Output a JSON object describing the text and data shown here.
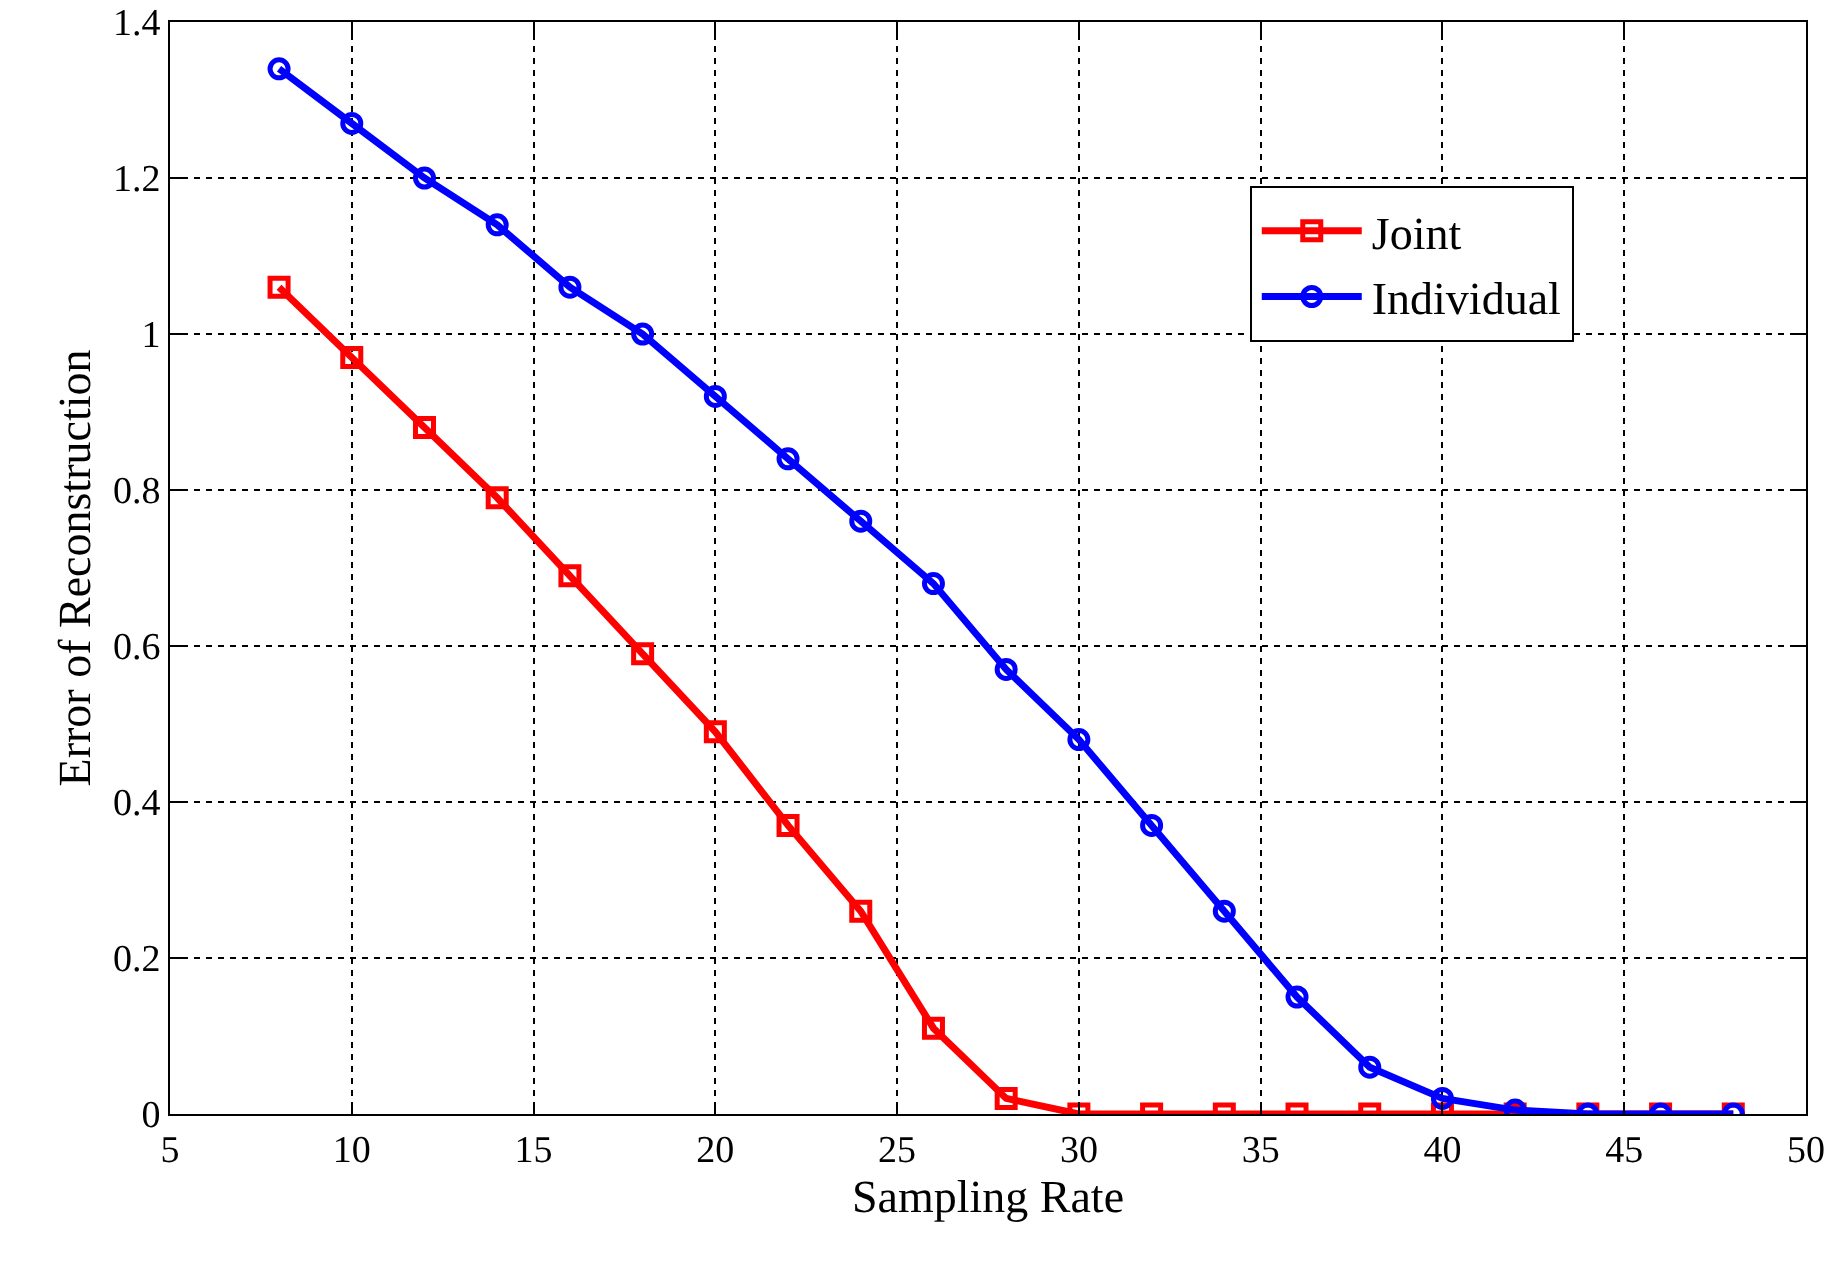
{
  "chart_data": {
    "type": "line",
    "xlabel": "Sampling Rate",
    "ylabel": "Error of Reconstruction",
    "x": [
      8,
      10,
      12,
      14,
      16,
      18,
      20,
      22,
      24,
      26,
      28,
      30,
      32,
      34,
      36,
      38,
      40,
      42,
      44,
      46,
      48
    ],
    "series": [
      {
        "name": "Joint",
        "color": "#ff0000",
        "marker": "square",
        "values": [
          1.06,
          0.97,
          0.88,
          0.79,
          0.69,
          0.59,
          0.49,
          0.37,
          0.26,
          0.11,
          0.02,
          0,
          0,
          0,
          0,
          0,
          0,
          0,
          0,
          0,
          0
        ]
      },
      {
        "name": "Individual",
        "color": "#0000ff",
        "marker": "circle",
        "values": [
          1.34,
          1.27,
          1.2,
          1.14,
          1.06,
          1.0,
          0.92,
          0.84,
          0.76,
          0.68,
          0.57,
          0.48,
          0.37,
          0.26,
          0.15,
          0.06,
          0.02,
          0.005,
          0,
          0,
          0
        ]
      }
    ],
    "xlim": [
      5,
      50
    ],
    "xticks": [
      5,
      10,
      15,
      20,
      25,
      30,
      35,
      40,
      45,
      50
    ],
    "ylim": [
      0,
      1.4
    ],
    "yticks": [
      0,
      0.2,
      0.4,
      0.6,
      0.8,
      1,
      1.2,
      1.4
    ],
    "grid": true,
    "legend": "top right",
    "line_style": "solid"
  }
}
